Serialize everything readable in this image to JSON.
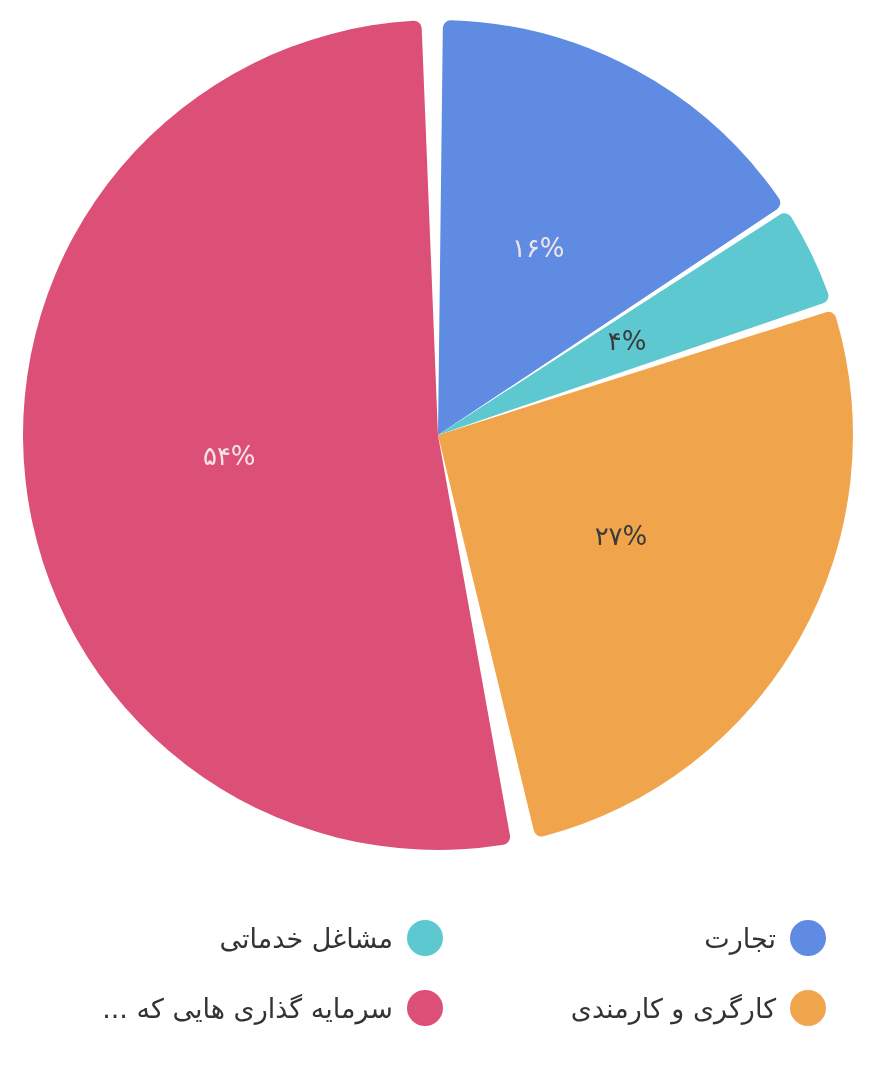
{
  "chart_data": {
    "type": "pie",
    "categories": [
      "تجارت",
      "مشاغل خدماتی",
      "کارگری و کارمندی",
      "سرمایه گذاری هایی که ..."
    ],
    "values": [
      16,
      4,
      27,
      54
    ],
    "colors": [
      "#5f8be3",
      "#5ec8d0",
      "#f0a54c",
      "#dc5078"
    ],
    "value_labels": [
      "۱۶%",
      "۴%",
      "۲۷%",
      "۵۴%"
    ],
    "legend": "bottom"
  }
}
